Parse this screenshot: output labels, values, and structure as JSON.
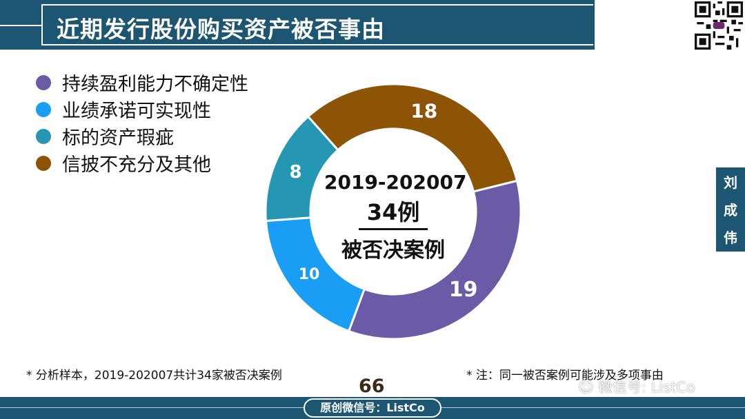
{
  "header": {
    "title": "近期发行股份购买资产被否事由"
  },
  "legend": [
    {
      "label": "持续盈利能力不确定性",
      "color": "#6b5aa6"
    },
    {
      "label": "业绩承诺可实现性",
      "color": "#1a9ef5"
    },
    {
      "label": "标的资产瑕疵",
      "color": "#2597b3"
    },
    {
      "label": "信披不充分及其他",
      "color": "#8e5406"
    }
  ],
  "center": {
    "range": "2019-202007",
    "count": "34例",
    "caption": "被否决案例"
  },
  "author": [
    "刘",
    "成",
    "伟"
  ],
  "footnotes": {
    "left": "* 分析样本，2019-202007共计34家被否决案例",
    "right": "* 注：同一被否案例可能涉及多项事由"
  },
  "page_number": "66",
  "watermark": "微信号: ListCo",
  "footer": {
    "label": "原创微信号：ListCo"
  },
  "colors": {
    "brand": "#1d5673"
  },
  "chart_data": {
    "type": "pie",
    "categories": [
      "持续盈利能力不确定性",
      "业绩承诺可实现性",
      "标的资产瑕疵",
      "信披不充分及其他"
    ],
    "values": [
      19,
      10,
      8,
      18
    ],
    "data_labels": [
      "19",
      "10",
      "8",
      "18"
    ],
    "colors": [
      "#6b5aa6",
      "#1a9ef5",
      "#2597b3",
      "#8e5406"
    ],
    "legend_position": "top-left",
    "donut": true
  }
}
